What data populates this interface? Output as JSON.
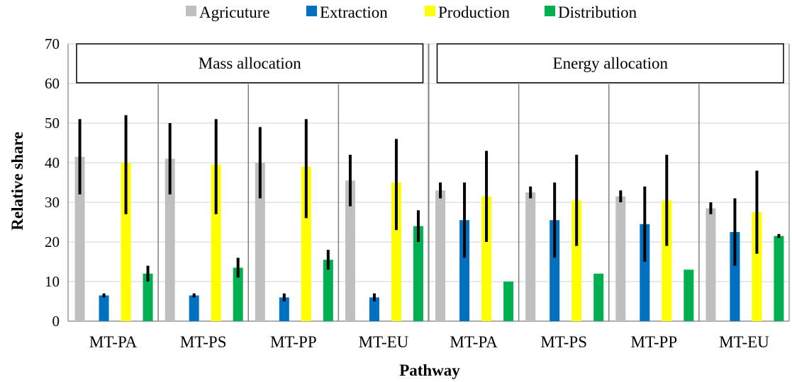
{
  "chart_data": {
    "type": "bar",
    "xlabel": "Pathway",
    "ylabel": "Relative share",
    "ylim": [
      0,
      70
    ],
    "yticks": [
      0,
      10,
      20,
      30,
      40,
      50,
      60,
      70
    ],
    "legend_position": "top",
    "panels": [
      "Mass allocation",
      "Energy allocation"
    ],
    "categories": [
      "MT-PA",
      "MT-PS",
      "MT-PP",
      "MT-EU",
      "MT-PA",
      "MT-PS",
      "MT-PP",
      "MT-EU"
    ],
    "series": [
      {
        "name": "Agricuture",
        "color": "#BFBFBF",
        "values": [
          41.5,
          41,
          40,
          35.5,
          33,
          32.5,
          31.5,
          28.5
        ],
        "error_low": [
          32,
          32,
          31,
          29,
          31,
          31,
          30,
          27
        ],
        "error_high": [
          51,
          50,
          49,
          42,
          35,
          34,
          33,
          30
        ]
      },
      {
        "name": "Extraction",
        "color": "#0070C0",
        "values": [
          6.5,
          6.5,
          6,
          6,
          25.5,
          25.5,
          24.5,
          22.5
        ],
        "error_low": [
          6,
          6,
          5,
          5,
          16,
          16,
          15,
          14
        ],
        "error_high": [
          7,
          7,
          7,
          7,
          35,
          35,
          34,
          31
        ]
      },
      {
        "name": "Production",
        "color": "#FFFF00",
        "values": [
          40,
          39.5,
          39,
          35,
          31.5,
          30.5,
          30.5,
          27.5
        ],
        "error_low": [
          27,
          27,
          26,
          23,
          20,
          19,
          19,
          17
        ],
        "error_high": [
          52,
          51,
          51,
          46,
          43,
          42,
          42,
          38
        ]
      },
      {
        "name": "Distribution",
        "color": "#00B050",
        "values": [
          12,
          13.5,
          15.5,
          24,
          10,
          12,
          13,
          21.5
        ],
        "error_low": [
          10,
          11,
          13,
          20,
          null,
          null,
          null,
          21
        ],
        "error_high": [
          14,
          16,
          18,
          28,
          null,
          null,
          null,
          22
        ]
      }
    ]
  }
}
